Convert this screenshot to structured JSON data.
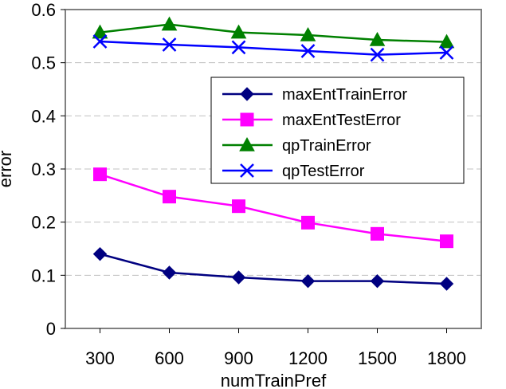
{
  "chart_data": {
    "type": "line",
    "x": [
      300,
      600,
      900,
      1200,
      1500,
      1800
    ],
    "xlabel": "numTrainPref",
    "ylabel": "error",
    "ylim": [
      0,
      0.6
    ],
    "yticks": [
      0,
      0.1,
      0.2,
      0.3,
      0.4,
      0.5,
      0.6
    ],
    "ytick_labels": [
      "0",
      "0.1",
      "0.2",
      "0.3",
      "0.4",
      "0.5",
      "0.6"
    ],
    "xtick_labels": [
      "300",
      "600",
      "900",
      "1200",
      "1500",
      "1800"
    ],
    "grid": "horizontal dashed",
    "legend_position": "right",
    "series": [
      {
        "name": "maxEntTrainError",
        "values": [
          0.14,
          0.105,
          0.096,
          0.089,
          0.089,
          0.084
        ],
        "color": "#000080",
        "marker": "diamond"
      },
      {
        "name": "maxEntTestError",
        "values": [
          0.29,
          0.248,
          0.23,
          0.199,
          0.178,
          0.164
        ],
        "color": "#FF00FF",
        "marker": "square"
      },
      {
        "name": "qpTrainError",
        "values": [
          0.557,
          0.572,
          0.557,
          0.552,
          0.543,
          0.539
        ],
        "color": "#008000",
        "marker": "triangle"
      },
      {
        "name": "qpTestError",
        "values": [
          0.54,
          0.534,
          0.529,
          0.522,
          0.515,
          0.519
        ],
        "color": "#0000FF",
        "marker": "x"
      }
    ]
  }
}
